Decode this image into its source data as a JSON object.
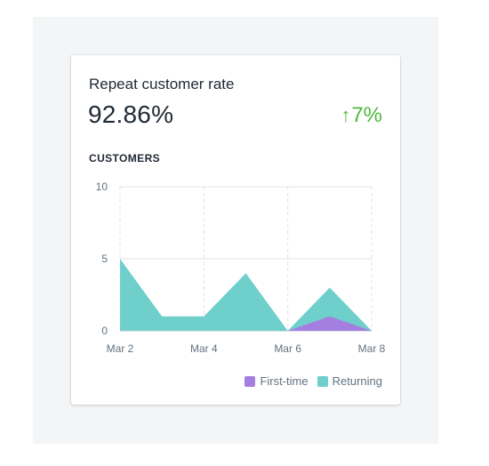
{
  "card": {
    "title": "Repeat customer rate",
    "metric": "92.86%",
    "delta": "7%",
    "delta_icon": "arrow-up-icon",
    "section_label": "CUSTOMERS"
  },
  "colors": {
    "first_time": "#a57fe0",
    "returning": "#6fcfcb",
    "delta": "#50b83c"
  },
  "chart_data": {
    "type": "area",
    "title": "CUSTOMERS",
    "x": [
      "Mar 2",
      "Mar 3",
      "Mar 4",
      "Mar 5",
      "Mar 6",
      "Mar 7",
      "Mar 8"
    ],
    "x_tick_labels": [
      "Mar 2",
      "Mar 4",
      "Mar 6",
      "Mar 8"
    ],
    "y_ticks": [
      0,
      5,
      10
    ],
    "ylim": [
      0,
      10
    ],
    "grid": true,
    "legend_position": "bottom-right",
    "series": [
      {
        "name": "First-time",
        "values": [
          0,
          0,
          0,
          0,
          0,
          1,
          0
        ]
      },
      {
        "name": "Returning",
        "values": [
          5,
          1,
          1,
          4,
          0,
          3,
          0
        ]
      }
    ]
  }
}
